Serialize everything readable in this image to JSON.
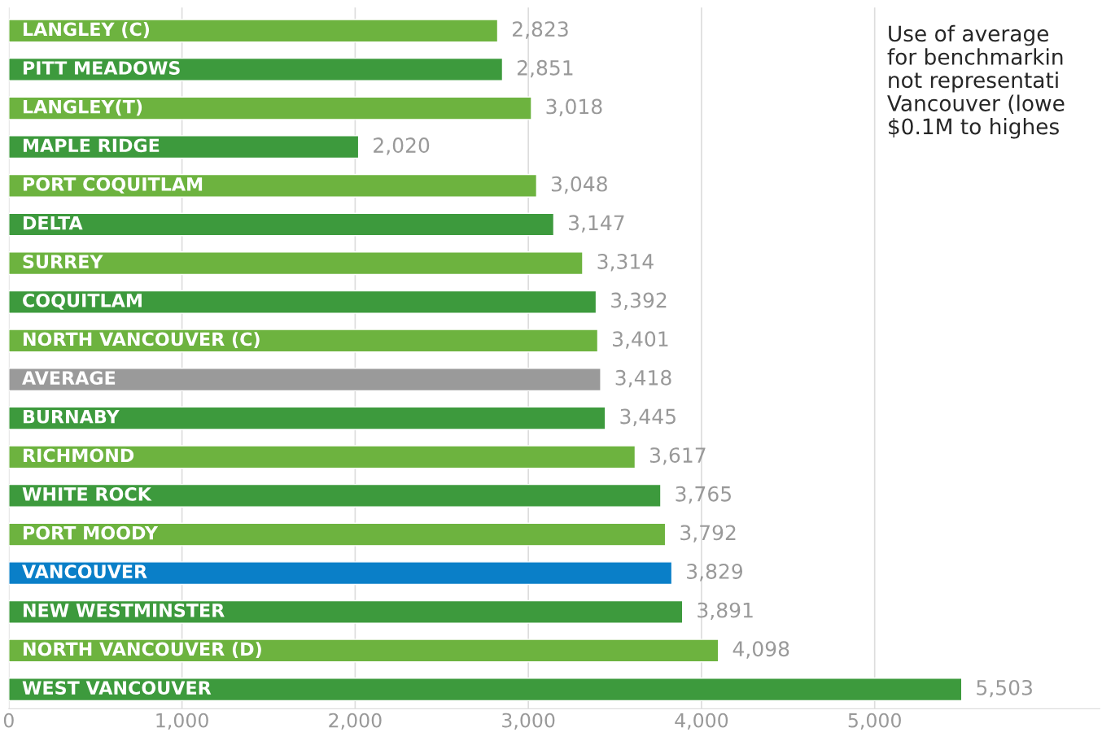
{
  "chart_data": {
    "type": "bar",
    "orientation": "horizontal",
    "categories": [
      "LANGLEY (C)",
      "PITT MEADOWS",
      "LANGLEY(T)",
      "MAPLE RIDGE",
      "PORT COQUITLAM",
      "DELTA",
      "SURREY",
      "COQUITLAM",
      "NORTH VANCOUVER (C)",
      "AVERAGE",
      "BURNABY",
      "RICHMOND",
      "WHITE ROCK",
      "PORT MOODY",
      "VANCOUVER",
      "NEW WESTMINSTER",
      "NORTH VANCOUVER (D)",
      "WEST VANCOUVER"
    ],
    "values": [
      2823,
      2851,
      3018,
      2020,
      3048,
      3147,
      3314,
      3392,
      3401,
      3418,
      3445,
      3617,
      3765,
      3792,
      3829,
      3891,
      4098,
      5503
    ],
    "value_labels": [
      "2,823",
      "2,851",
      "3,018",
      "2,020",
      "3,048",
      "3,147",
      "3,314",
      "3,392",
      "3,401",
      "3,418",
      "3,445",
      "3,617",
      "3,765",
      "3,792",
      "3,829",
      "3,891",
      "4,098",
      "5,503"
    ],
    "colors": [
      "#6db33f",
      "#3d9a3d",
      "#6db33f",
      "#3d9a3d",
      "#6db33f",
      "#3d9a3d",
      "#6db33f",
      "#3d9a3d",
      "#6db33f",
      "#9a9a9a",
      "#3d9a3d",
      "#6db33f",
      "#3d9a3d",
      "#6db33f",
      "#0a7fc8",
      "#3d9a3d",
      "#6db33f",
      "#3d9a3d"
    ],
    "xlim": [
      0,
      6300
    ],
    "xticks": [
      {
        "value": 0,
        "label": "0"
      },
      {
        "value": 1000,
        "label": "1,000"
      },
      {
        "value": 2000,
        "label": "2,000"
      },
      {
        "value": 3000,
        "label": "3,000"
      },
      {
        "value": 4000,
        "label": "4,000"
      },
      {
        "value": 5000,
        "label": "5,000"
      }
    ],
    "grid": "x",
    "tick_labels": "x",
    "annotations": [
      "Use of average\nfor benchmarkin\nnot representati\nVancouver (lowe\n$0.1M to highes"
    ]
  }
}
